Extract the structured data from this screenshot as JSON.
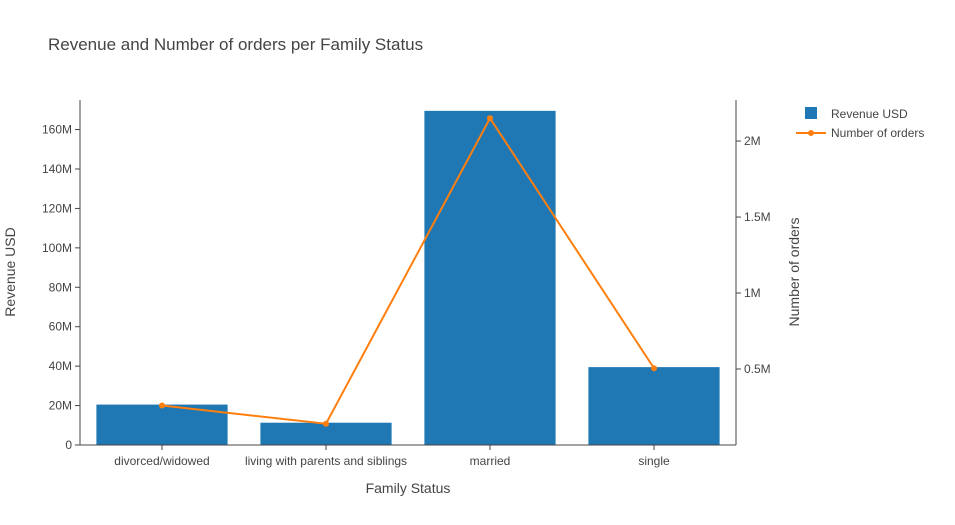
{
  "chart_data": {
    "type": "bar",
    "title": "Revenue and Number of orders per Family Status",
    "xlabel": "Family Status",
    "ylabel": "Revenue USD",
    "y2label": "Number of orders",
    "categories": [
      "divorced/widowed",
      "living with parents and siblings",
      "married",
      "single"
    ],
    "series": [
      {
        "name": "Revenue USD",
        "type": "bar",
        "axis": "y",
        "color": "#1f77b4",
        "values": [
          20500000,
          11300000,
          169500000,
          39500000
        ]
      },
      {
        "name": "Number of orders",
        "type": "line",
        "axis": "y2",
        "color": "#ff7f0e",
        "values": [
          260000,
          140000,
          2150000,
          505000
        ]
      }
    ],
    "ylim": [
      0,
      175000000
    ],
    "y2lim": [
      0,
      2270000
    ],
    "yticks": [
      {
        "value": 0,
        "label": "0"
      },
      {
        "value": 20000000,
        "label": "20M"
      },
      {
        "value": 40000000,
        "label": "40M"
      },
      {
        "value": 60000000,
        "label": "60M"
      },
      {
        "value": 80000000,
        "label": "80M"
      },
      {
        "value": 100000000,
        "label": "100M"
      },
      {
        "value": 120000000,
        "label": "120M"
      },
      {
        "value": 140000000,
        "label": "140M"
      },
      {
        "value": 160000000,
        "label": "160M"
      }
    ],
    "y2ticks": [
      {
        "value": 500000,
        "label": "0.5M"
      },
      {
        "value": 1000000,
        "label": "1M"
      },
      {
        "value": 1500000,
        "label": "1.5M"
      },
      {
        "value": 2000000,
        "label": "2M"
      }
    ],
    "grid": false,
    "legend_position": "top-right"
  }
}
